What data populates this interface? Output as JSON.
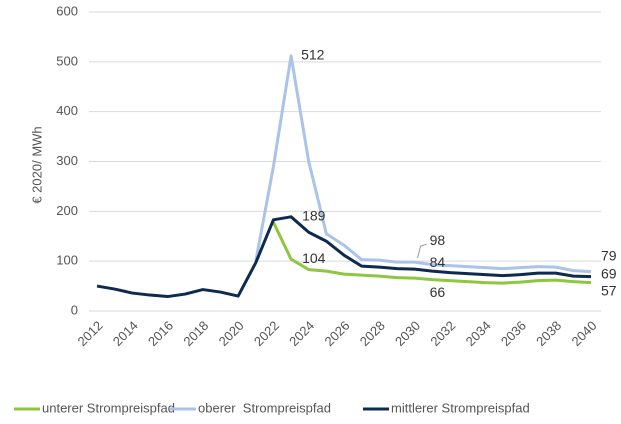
{
  "chart_data": {
    "type": "line",
    "y_label": "€ 2020/ MWh",
    "x": [
      2012,
      2013,
      2014,
      2015,
      2016,
      2017,
      2018,
      2019,
      2020,
      2021,
      2022,
      2023,
      2024,
      2025,
      2026,
      2027,
      2028,
      2029,
      2030,
      2031,
      2032,
      2033,
      2034,
      2035,
      2036,
      2037,
      2038,
      2039,
      2040
    ],
    "xlim": [
      2012,
      2040
    ],
    "xticks": [
      2012,
      2014,
      2016,
      2018,
      2020,
      2022,
      2024,
      2026,
      2028,
      2030,
      2032,
      2034,
      2036,
      2038,
      2040
    ],
    "ylim": [
      0,
      600
    ],
    "yticks": [
      0,
      100,
      200,
      300,
      400,
      500,
      600
    ],
    "grid": true,
    "legend": "bottom",
    "series": [
      {
        "name": "unterer Strompreispfad",
        "color": "#8dc63f",
        "values": [
          null,
          null,
          null,
          null,
          null,
          null,
          null,
          null,
          null,
          null,
          178,
          104,
          83,
          80,
          74,
          72,
          70,
          67,
          66,
          63,
          61,
          59,
          57,
          56,
          58,
          61,
          62,
          59,
          57
        ],
        "value_labels": [
          null,
          null,
          null,
          null,
          null,
          null,
          null,
          null,
          null,
          null,
          null,
          "104",
          null,
          null,
          null,
          null,
          null,
          null,
          "66",
          null,
          null,
          null,
          null,
          null,
          null,
          null,
          null,
          null,
          "57"
        ]
      },
      {
        "name": "oberer  Strompreispfad",
        "color": "#a9c4e8",
        "values": [
          null,
          null,
          null,
          null,
          null,
          null,
          null,
          null,
          null,
          100,
          290,
          512,
          300,
          155,
          132,
          103,
          102,
          98,
          98,
          93,
          91,
          89,
          87,
          85,
          87,
          89,
          88,
          81,
          79
        ],
        "value_labels": [
          null,
          null,
          null,
          null,
          null,
          null,
          null,
          null,
          null,
          null,
          null,
          "512",
          null,
          null,
          null,
          null,
          null,
          null,
          "98",
          null,
          null,
          null,
          null,
          null,
          null,
          null,
          null,
          null,
          "79"
        ]
      },
      {
        "name": "mittlerer Strompreispfad",
        "color": "#0d2a4f",
        "values": [
          50,
          44,
          36,
          32,
          29,
          34,
          43,
          38,
          30,
          97,
          183,
          189,
          158,
          140,
          112,
          90,
          88,
          85,
          84,
          80,
          77,
          75,
          73,
          71,
          73,
          76,
          76,
          70,
          69
        ],
        "value_labels": [
          null,
          null,
          null,
          null,
          null,
          null,
          null,
          null,
          null,
          null,
          null,
          "189",
          null,
          null,
          null,
          null,
          null,
          null,
          "84",
          null,
          null,
          null,
          null,
          null,
          null,
          null,
          null,
          null,
          "69"
        ]
      }
    ]
  }
}
